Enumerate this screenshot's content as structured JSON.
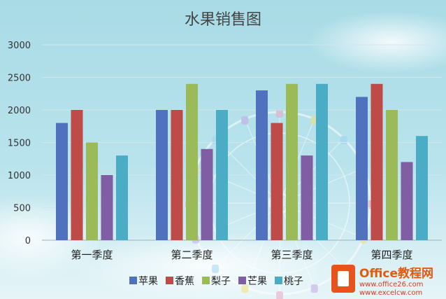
{
  "chart_data": {
    "type": "bar",
    "title": "水果销售图",
    "categories": [
      "第一季度",
      "第二季度",
      "第三季度",
      "第四季度"
    ],
    "series": [
      {
        "name": "苹果",
        "color": "#4f71be",
        "values": [
          1800,
          2000,
          2300,
          2200
        ]
      },
      {
        "name": "香蕉",
        "color": "#be4b48",
        "values": [
          2000,
          2000,
          1800,
          2400
        ]
      },
      {
        "name": "梨子",
        "color": "#9bbb59",
        "values": [
          1500,
          2400,
          2400,
          2000
        ]
      },
      {
        "name": "芒果",
        "color": "#7f5ea3",
        "values": [
          1000,
          1400,
          1300,
          1200
        ]
      },
      {
        "name": "桃子",
        "color": "#4aacc5",
        "values": [
          1300,
          2000,
          2400,
          1600
        ]
      }
    ],
    "ylim": [
      0,
      3000
    ],
    "yticks": [
      0,
      500,
      1000,
      1500,
      2000,
      2500,
      3000
    ],
    "grid": true,
    "legend_position": "bottom",
    "xlabel": "",
    "ylabel": ""
  },
  "watermark": {
    "brand": "Office教程网",
    "line1": "www.office26.com",
    "line2": "www.excelcw.com"
  }
}
